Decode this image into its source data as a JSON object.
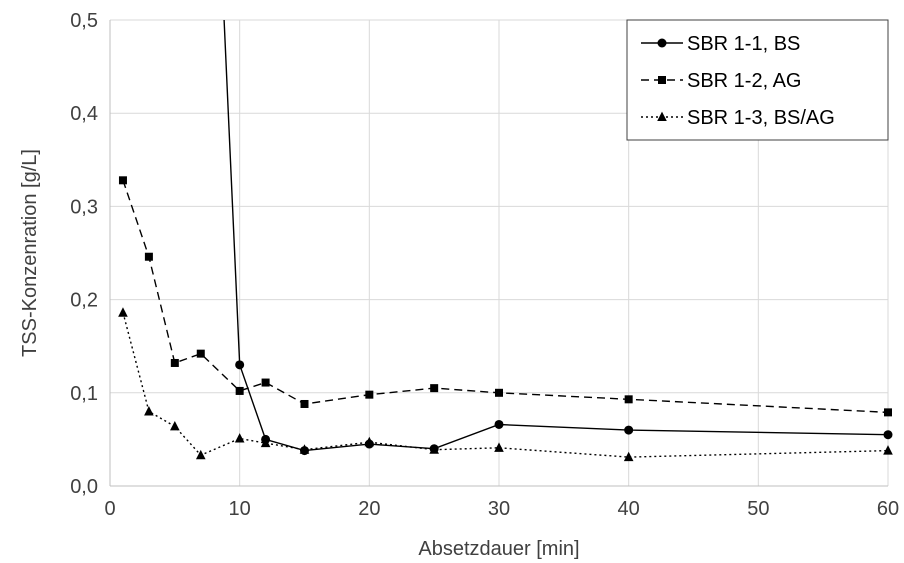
{
  "chart_data": {
    "type": "line",
    "xlabel": "Absetzdauer [min]",
    "ylabel": "TSS-Konzenration [g/L]",
    "xlim": [
      0,
      60
    ],
    "ylim": [
      0,
      0.5
    ],
    "x_ticks": [
      0,
      10,
      20,
      30,
      40,
      50,
      60
    ],
    "y_ticks": [
      0,
      0.1,
      0.2,
      0.3,
      0.4,
      0.5
    ],
    "x_tick_labels": [
      "0",
      "10",
      "20",
      "30",
      "40",
      "50",
      "60"
    ],
    "y_tick_labels": [
      "0,0",
      "0,1",
      "0,2",
      "0,3",
      "0,4",
      "0,5"
    ],
    "grid": true,
    "legend_position": "top-right",
    "series": [
      {
        "name": "SBR 1-1, BS",
        "marker": "circle",
        "dash": "solid",
        "color": "#000000",
        "x": [
          10,
          12,
          15,
          20,
          25,
          30,
          40,
          60
        ],
        "y": [
          0.13,
          0.05,
          0.038,
          0.045,
          0.04,
          0.066,
          0.06,
          0.055
        ],
        "line_enters_from_above": true,
        "entry_x": 8.8
      },
      {
        "name": "SBR 1-2, AG",
        "marker": "square",
        "dash": "dashed",
        "color": "#000000",
        "x": [
          1,
          3,
          5,
          7,
          10,
          12,
          15,
          20,
          25,
          30,
          40,
          60
        ],
        "y": [
          0.328,
          0.246,
          0.132,
          0.142,
          0.102,
          0.111,
          0.088,
          0.098,
          0.105,
          0.1,
          0.093,
          0.079
        ]
      },
      {
        "name": "SBR 1-3, BS/AG",
        "marker": "triangle",
        "dash": "dotted",
        "color": "#000000",
        "x": [
          1,
          3,
          5,
          7,
          10,
          12,
          15,
          20,
          25,
          30,
          40,
          60
        ],
        "y": [
          0.186,
          0.08,
          0.064,
          0.033,
          0.051,
          0.046,
          0.039,
          0.047,
          0.039,
          0.041,
          0.031,
          0.038
        ]
      }
    ]
  }
}
